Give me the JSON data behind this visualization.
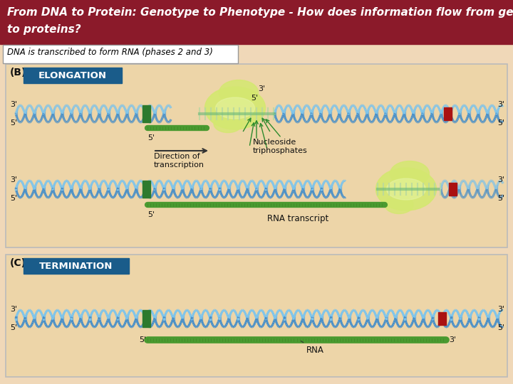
{
  "title_line1": "From DNA to Protein: Genotype to Phenotype - How does information flow from genes",
  "title_line2": "to proteins?",
  "subtitle": "DNA is transcribed to form RNA (phases 2 and 3)",
  "title_bg_color": "#8B1A2A",
  "title_text_color": "#FFFFFF",
  "subtitle_bg_color": "#FFFFFF",
  "subtitle_text_color": "#000000",
  "subtitle_border_color": "#999999",
  "main_bg_color": "#F0D8B8",
  "panel_bg_color": "#EDD5A8",
  "panel_border_color": "#BBBBBB",
  "elongation_label_bg": "#1A5C8A",
  "termination_label_bg": "#1A5C8A",
  "label_text_color": "#FFFFFF",
  "dna_color1": "#6AB0E0",
  "dna_color2": "#4A90C8",
  "rna_fill_color": "#4A9A30",
  "rna_line_color": "#3A7A20",
  "enzyme_color": "#D4E870",
  "marker_green": "#2D7A2D",
  "marker_red": "#AA1111",
  "arrow_color": "#333333",
  "text_color": "#111111",
  "figsize": [
    7.2,
    5.4
  ],
  "dpi": 100
}
